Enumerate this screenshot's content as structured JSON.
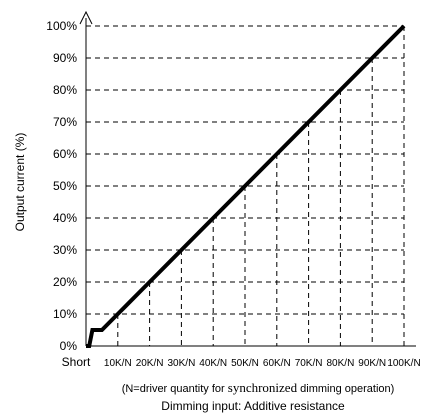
{
  "chart_data": {
    "type": "line",
    "ylabel": "Output current (%)",
    "xlabel": "Dimming input: Additive resistance",
    "note": {
      "before": "(N=driver quantity for ",
      "emphasis": "synchronized",
      "after": " dimming operation)"
    },
    "x_tick_labels": [
      "Short",
      "10K/N",
      "20K/N",
      "30K/N",
      "40K/N",
      "50K/N",
      "60K/N",
      "70K/N",
      "80K/N",
      "90K/N",
      "100K/N"
    ],
    "y_tick_labels": [
      "0%",
      "10%",
      "20%",
      "30%",
      "40%",
      "50%",
      "60%",
      "70%",
      "80%",
      "90%",
      "100%"
    ],
    "ylim": [
      0,
      100
    ],
    "xlim": [
      0,
      100
    ],
    "grid": "dashed",
    "series": [
      {
        "x": [
          0,
          1,
          2,
          5,
          10,
          20,
          30,
          40,
          50,
          60,
          70,
          80,
          90,
          100
        ],
        "y": [
          0,
          0,
          5,
          5,
          10,
          20,
          30,
          40,
          50,
          60,
          70,
          80,
          90,
          100
        ]
      }
    ]
  }
}
